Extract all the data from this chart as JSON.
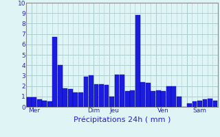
{
  "values": [
    0.9,
    0.9,
    0.7,
    0.6,
    0.5,
    6.7,
    4.0,
    1.8,
    1.7,
    1.35,
    1.35,
    2.9,
    3.0,
    2.2,
    2.2,
    2.1,
    1.0,
    3.1,
    3.1,
    1.5,
    1.6,
    8.8,
    2.4,
    2.3,
    1.5,
    1.6,
    1.5,
    2.0,
    2.0,
    1.0,
    0.0,
    0.35,
    0.5,
    0.6,
    0.75,
    0.8,
    0.6
  ],
  "day_labels": [
    "Mer",
    "Dim",
    "Jeu",
    "Ven",
    "Sam"
  ],
  "day_tick_x": [
    1,
    13,
    17,
    26,
    33
  ],
  "day_line_x": [
    0.5,
    12.5,
    15.5,
    24.5,
    30.5
  ],
  "bar_color": "#1c1cdd",
  "bar_edge_color": "#0000aa",
  "background_color": "#dff4f4",
  "grid_color": "#aacccc",
  "xlabel": "Précipitations 24h ( mm )",
  "xlabel_color": "#2222cc",
  "tick_color": "#2222cc",
  "ylim": [
    0,
    10
  ],
  "yticks": [
    0,
    1,
    2,
    3,
    4,
    5,
    6,
    7,
    8,
    9,
    10
  ]
}
